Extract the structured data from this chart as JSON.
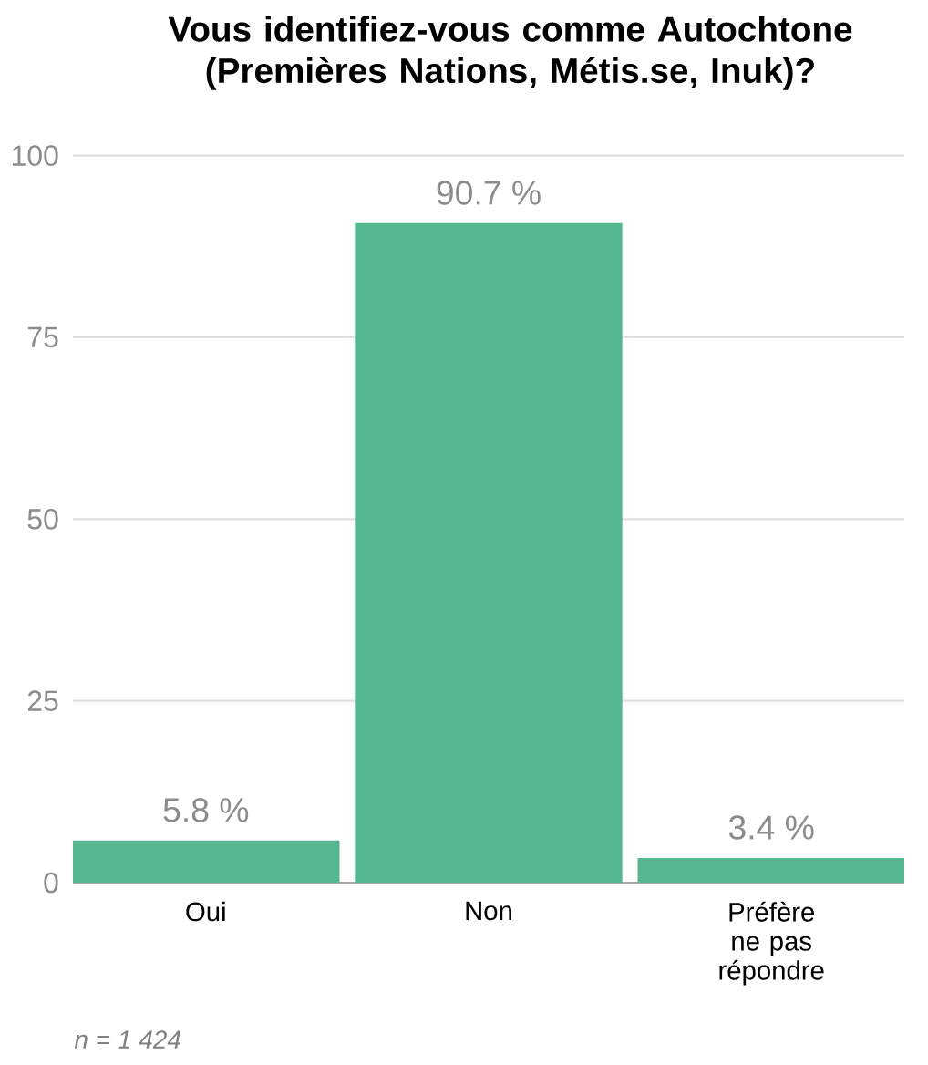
{
  "chart_data": {
    "type": "bar",
    "title": "Vous identifiez-vous comme Autochtone (Premières Nations, Métis.se, Inuk)?",
    "categories": [
      "Oui",
      "Non",
      "Préfère ne pas répondre"
    ],
    "values": [
      5.8,
      90.7,
      3.4
    ],
    "value_labels": [
      "5.8 %",
      "90.7 %",
      "3.4 %"
    ],
    "color": "#56b690",
    "ylim": [
      0,
      100
    ],
    "yticks": [
      0,
      25,
      50,
      75,
      100
    ],
    "grid": "y",
    "annotations": [
      "n = 1 424"
    ]
  }
}
